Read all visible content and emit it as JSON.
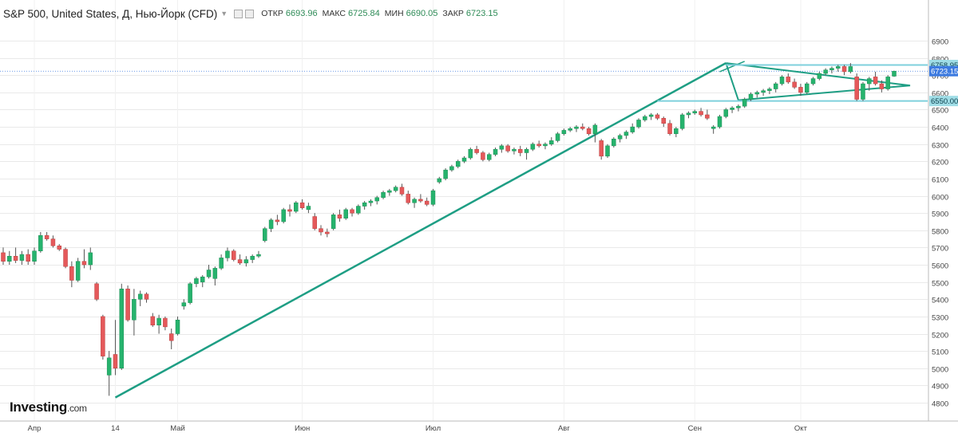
{
  "header": {
    "title": "S&P 500, United States, Д, Нью-Йорк (CFD)",
    "open_label": "ОТКР",
    "open_value": "6693.96",
    "high_label": "МАКС",
    "high_value": "6725.84",
    "low_label": "МИН",
    "low_value": "6690.05",
    "close_label": "ЗАКР",
    "close_value": "6723.15"
  },
  "logo": {
    "brand": "Investing",
    "suffix": ".com"
  },
  "colors": {
    "up": "#26b36d",
    "down": "#e5595b",
    "trendline": "#1e9e84",
    "level": "#7fd0dc",
    "current": "#3d7be0",
    "grid": "#e9e9e9"
  },
  "chart_data": {
    "type": "candlestick",
    "ylim": [
      4780,
      6950
    ],
    "y_ticks": [
      4800,
      4900,
      5000,
      5100,
      5200,
      5300,
      5400,
      5500,
      5600,
      5700,
      5800,
      5900,
      6000,
      6100,
      6200,
      6300,
      6400,
      6500,
      6600,
      6700,
      6800,
      6900
    ],
    "x_ticks": [
      "Апр",
      "14",
      "Май",
      "Июн",
      "Июл",
      "Авг",
      "Сен",
      "Окт"
    ],
    "price_labels": [
      {
        "value": 6758.95,
        "text": "6758.95",
        "style": "level"
      },
      {
        "value": 6723.15,
        "text": "6723.15",
        "style": "current"
      },
      {
        "value": 6550.0,
        "text": "6550.00",
        "style": "level"
      }
    ],
    "candles": [
      [
        5670,
        5700,
        5600,
        5620
      ],
      [
        5620,
        5680,
        5600,
        5650
      ],
      [
        5650,
        5700,
        5610,
        5625
      ],
      [
        5625,
        5680,
        5600,
        5660
      ],
      [
        5660,
        5690,
        5600,
        5620
      ],
      [
        5620,
        5700,
        5600,
        5680
      ],
      [
        5680,
        5790,
        5670,
        5770
      ],
      [
        5770,
        5790,
        5740,
        5750
      ],
      [
        5750,
        5770,
        5700,
        5710
      ],
      [
        5710,
        5720,
        5680,
        5690
      ],
      [
        5690,
        5700,
        5580,
        5590
      ],
      [
        5590,
        5620,
        5470,
        5510
      ],
      [
        5510,
        5640,
        5500,
        5620
      ],
      [
        5620,
        5690,
        5580,
        5600
      ],
      [
        5600,
        5700,
        5570,
        5670
      ],
      [
        5490,
        5500,
        5390,
        5400
      ],
      [
        5300,
        5310,
        5050,
        5070
      ],
      [
        4960,
        5100,
        4840,
        5060
      ],
      [
        5080,
        5280,
        4960,
        5000
      ],
      [
        5000,
        5490,
        4990,
        5460
      ],
      [
        5460,
        5480,
        5270,
        5280
      ],
      [
        5280,
        5460,
        5190,
        5400
      ],
      [
        5400,
        5450,
        5360,
        5430
      ],
      [
        5430,
        5440,
        5380,
        5400
      ],
      [
        5300,
        5320,
        5240,
        5250
      ],
      [
        5250,
        5310,
        5200,
        5290
      ],
      [
        5290,
        5300,
        5220,
        5240
      ],
      [
        5200,
        5230,
        5110,
        5160
      ],
      [
        5200,
        5300,
        5190,
        5280
      ],
      [
        5360,
        5400,
        5340,
        5380
      ],
      [
        5380,
        5500,
        5370,
        5490
      ],
      [
        5490,
        5530,
        5470,
        5520
      ],
      [
        5500,
        5540,
        5470,
        5530
      ],
      [
        5530,
        5600,
        5520,
        5570
      ],
      [
        5520,
        5590,
        5480,
        5580
      ],
      [
        5580,
        5660,
        5570,
        5640
      ],
      [
        5640,
        5700,
        5620,
        5680
      ],
      [
        5680,
        5690,
        5620,
        5630
      ],
      [
        5630,
        5660,
        5600,
        5610
      ],
      [
        5610,
        5650,
        5590,
        5630
      ],
      [
        5630,
        5660,
        5610,
        5650
      ],
      [
        5650,
        5680,
        5640,
        5660
      ],
      [
        5740,
        5820,
        5730,
        5810
      ],
      [
        5810,
        5870,
        5790,
        5860
      ],
      [
        5860,
        5890,
        5830,
        5850
      ],
      [
        5850,
        5930,
        5840,
        5920
      ],
      [
        5920,
        5950,
        5880,
        5910
      ],
      [
        5910,
        5970,
        5900,
        5960
      ],
      [
        5960,
        5980,
        5920,
        5930
      ],
      [
        5920,
        5960,
        5900,
        5940
      ],
      [
        5880,
        5900,
        5800,
        5810
      ],
      [
        5810,
        5830,
        5770,
        5790
      ],
      [
        5790,
        5810,
        5760,
        5780
      ],
      [
        5810,
        5900,
        5800,
        5890
      ],
      [
        5890,
        5920,
        5850,
        5870
      ],
      [
        5870,
        5930,
        5860,
        5920
      ],
      [
        5920,
        5930,
        5880,
        5900
      ],
      [
        5900,
        5950,
        5890,
        5940
      ],
      [
        5940,
        5970,
        5920,
        5960
      ],
      [
        5960,
        5980,
        5940,
        5970
      ],
      [
        5970,
        6000,
        5950,
        5990
      ],
      [
        5990,
        6030,
        5980,
        6020
      ],
      [
        6020,
        6040,
        6000,
        6030
      ],
      [
        6030,
        6060,
        6020,
        6050
      ],
      [
        6050,
        6070,
        6000,
        6010
      ],
      [
        6010,
        6030,
        5950,
        5960
      ],
      [
        5960,
        5990,
        5930,
        5980
      ],
      [
        5980,
        6010,
        5960,
        5970
      ],
      [
        5970,
        5990,
        5940,
        5950
      ],
      [
        5950,
        6040,
        5940,
        6030
      ],
      [
        6080,
        6110,
        6070,
        6100
      ],
      [
        6100,
        6160,
        6090,
        6150
      ],
      [
        6150,
        6180,
        6140,
        6170
      ],
      [
        6170,
        6210,
        6160,
        6200
      ],
      [
        6200,
        6230,
        6190,
        6220
      ],
      [
        6220,
        6280,
        6210,
        6270
      ],
      [
        6270,
        6290,
        6240,
        6250
      ],
      [
        6250,
        6260,
        6200,
        6210
      ],
      [
        6210,
        6250,
        6200,
        6240
      ],
      [
        6240,
        6280,
        6230,
        6270
      ],
      [
        6270,
        6300,
        6250,
        6290
      ],
      [
        6290,
        6300,
        6250,
        6260
      ],
      [
        6260,
        6280,
        6240,
        6270
      ],
      [
        6270,
        6290,
        6230,
        6250
      ],
      [
        6250,
        6280,
        6210,
        6270
      ],
      [
        6270,
        6310,
        6260,
        6300
      ],
      [
        6300,
        6320,
        6280,
        6290
      ],
      [
        6290,
        6310,
        6270,
        6300
      ],
      [
        6300,
        6340,
        6290,
        6320
      ],
      [
        6320,
        6370,
        6310,
        6360
      ],
      [
        6360,
        6390,
        6350,
        6380
      ],
      [
        6380,
        6400,
        6370,
        6390
      ],
      [
        6390,
        6410,
        6370,
        6400
      ],
      [
        6400,
        6420,
        6380,
        6390
      ],
      [
        6390,
        6400,
        6350,
        6360
      ],
      [
        6360,
        6420,
        6310,
        6410
      ],
      [
        6320,
        6330,
        6210,
        6230
      ],
      [
        6230,
        6300,
        6220,
        6290
      ],
      [
        6290,
        6340,
        6280,
        6330
      ],
      [
        6330,
        6360,
        6310,
        6350
      ],
      [
        6350,
        6380,
        6330,
        6370
      ],
      [
        6370,
        6420,
        6360,
        6400
      ],
      [
        6400,
        6450,
        6390,
        6440
      ],
      [
        6440,
        6470,
        6430,
        6460
      ],
      [
        6460,
        6480,
        6440,
        6470
      ],
      [
        6470,
        6480,
        6440,
        6450
      ],
      [
        6450,
        6460,
        6400,
        6420
      ],
      [
        6420,
        6440,
        6350,
        6360
      ],
      [
        6360,
        6400,
        6340,
        6390
      ],
      [
        6390,
        6480,
        6380,
        6470
      ],
      [
        6470,
        6490,
        6450,
        6480
      ],
      [
        6480,
        6500,
        6470,
        6490
      ],
      [
        6490,
        6510,
        6460,
        6470
      ],
      [
        6470,
        6500,
        6440,
        6450
      ],
      [
        6390,
        6410,
        6360,
        6400
      ],
      [
        6400,
        6470,
        6390,
        6460
      ],
      [
        6460,
        6510,
        6450,
        6500
      ],
      [
        6500,
        6520,
        6480,
        6510
      ],
      [
        6510,
        6530,
        6490,
        6520
      ],
      [
        6520,
        6570,
        6510,
        6560
      ],
      [
        6560,
        6600,
        6550,
        6590
      ],
      [
        6590,
        6610,
        6570,
        6600
      ],
      [
        6600,
        6620,
        6580,
        6610
      ],
      [
        6610,
        6630,
        6590,
        6620
      ],
      [
        6620,
        6660,
        6600,
        6650
      ],
      [
        6650,
        6700,
        6640,
        6690
      ],
      [
        6690,
        6710,
        6650,
        6660
      ],
      [
        6660,
        6680,
        6620,
        6630
      ],
      [
        6630,
        6650,
        6580,
        6600
      ],
      [
        6600,
        6660,
        6590,
        6650
      ],
      [
        6650,
        6690,
        6640,
        6680
      ],
      [
        6680,
        6720,
        6670,
        6710
      ],
      [
        6710,
        6740,
        6700,
        6730
      ],
      [
        6730,
        6750,
        6710,
        6740
      ],
      [
        6740,
        6760,
        6720,
        6750
      ],
      [
        6750,
        6760,
        6700,
        6720
      ],
      [
        6720,
        6770,
        6710,
        6750
      ],
      [
        6690,
        6710,
        6550,
        6560
      ],
      [
        6560,
        6660,
        6550,
        6650
      ],
      [
        6650,
        6690,
        6610,
        6680
      ],
      [
        6690,
        6720,
        6640,
        6650
      ],
      [
        6650,
        6670,
        6600,
        6620
      ],
      [
        6620,
        6700,
        6610,
        6690
      ],
      [
        6694,
        6726,
        6690,
        6723
      ]
    ]
  }
}
